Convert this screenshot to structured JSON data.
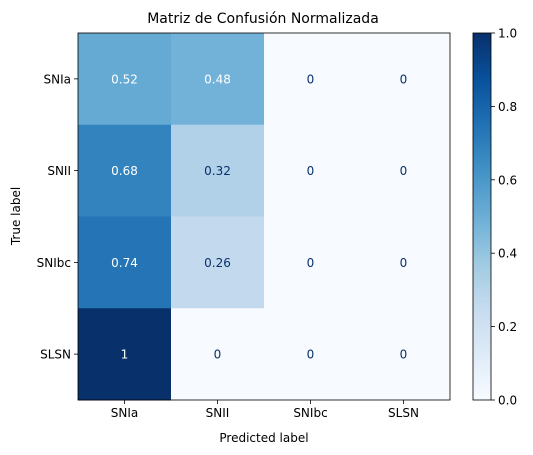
{
  "chart_data": {
    "type": "heatmap",
    "title": "Matriz de Confusión Normalizada",
    "xlabel": "Predicted label",
    "ylabel": "True label",
    "x_categories": [
      "SNIa",
      "SNII",
      "SNIbc",
      "SLSN"
    ],
    "y_categories": [
      "SNIa",
      "SNII",
      "SNIbc",
      "SLSN"
    ],
    "values": [
      [
        0.52,
        0.48,
        0,
        0
      ],
      [
        0.68,
        0.32,
        0,
        0
      ],
      [
        0.74,
        0.26,
        0,
        0
      ],
      [
        1,
        0,
        0,
        0
      ]
    ],
    "value_labels": [
      [
        "0.52",
        "0.48",
        "0",
        "0"
      ],
      [
        "0.68",
        "0.32",
        "0",
        "0"
      ],
      [
        "0.74",
        "0.26",
        "0",
        "0"
      ],
      [
        "1",
        "0",
        "0",
        "0"
      ]
    ],
    "colorbar": {
      "min": 0,
      "max": 1,
      "ticks": [
        "0.0",
        "0.2",
        "0.4",
        "0.6",
        "0.8",
        "1.0"
      ],
      "colormap": "Blues"
    },
    "grid": false
  }
}
